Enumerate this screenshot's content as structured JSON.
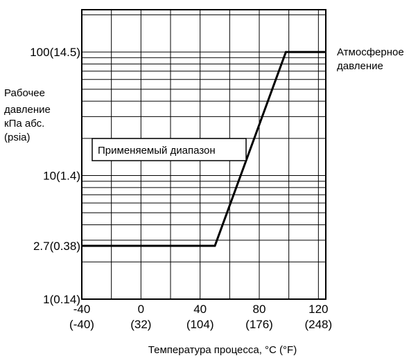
{
  "chart_data": {
    "type": "line",
    "xlabel": "Температура процесса, °C (°F)",
    "ylabel_lines": [
      "Рабочее",
      "давление",
      "кПа абс.",
      "(psia)"
    ],
    "x_scale": "linear",
    "y_scale": "log",
    "xlim": [
      -40,
      125
    ],
    "ylim": [
      1,
      220
    ],
    "x_ticks": [
      {
        "value": -40,
        "label": "-40",
        "sublabel": "(-40)"
      },
      {
        "value": 0,
        "label": "0",
        "sublabel": "(32)"
      },
      {
        "value": 40,
        "label": "40",
        "sublabel": "(104)"
      },
      {
        "value": 80,
        "label": "80",
        "sublabel": "(176)"
      },
      {
        "value": 120,
        "label": "120",
        "sublabel": "(248)"
      }
    ],
    "x_gridlines": [
      -20,
      0,
      20,
      40,
      60,
      80,
      100,
      120
    ],
    "y_ticks": [
      {
        "value": 1,
        "label": "1(0.14)"
      },
      {
        "value": 2.7,
        "label": "2.7(0.38)"
      },
      {
        "value": 10,
        "label": "10(1.4)"
      },
      {
        "value": 100,
        "label": "100(14.5)"
      }
    ],
    "y_gridlines": [
      2,
      3,
      4,
      5,
      6,
      7,
      8,
      9,
      10,
      20,
      30,
      40,
      50,
      60,
      70,
      80,
      90,
      100,
      200
    ],
    "series": [
      {
        "points": [
          [
            -40,
            2.7
          ],
          [
            50,
            2.7
          ],
          [
            98,
            100
          ],
          [
            125,
            100
          ]
        ],
        "color": "#000000"
      }
    ],
    "annotations": [
      {
        "text_lines": [
          "Атмосферное",
          "давление"
        ]
      }
    ],
    "region_label": "Применяемый диапазон"
  }
}
